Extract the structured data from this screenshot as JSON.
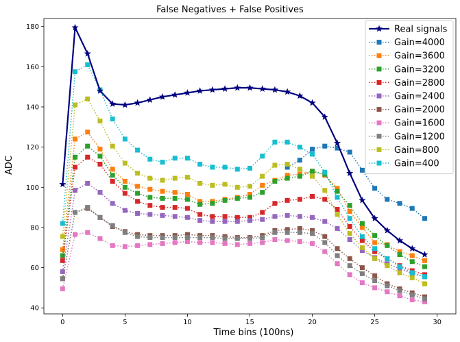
{
  "chart_data": {
    "type": "line",
    "title": "False Negatives + False Positives",
    "xlabel": "Time bins (100ns)",
    "ylabel": "ADC",
    "xlim": [
      -1.5,
      31.5
    ],
    "ylim": [
      37,
      184
    ],
    "xticks": [
      0,
      5,
      10,
      15,
      20,
      25,
      30
    ],
    "yticks": [
      40,
      60,
      80,
      100,
      120,
      140,
      160,
      180
    ],
    "grid": false,
    "legend_position": "top-right",
    "x": [
      0,
      1,
      2,
      3,
      4,
      5,
      6,
      7,
      8,
      9,
      10,
      11,
      12,
      13,
      14,
      15,
      16,
      17,
      18,
      19,
      20,
      21,
      22,
      23,
      24,
      25,
      26,
      27,
      28,
      29
    ],
    "series": [
      {
        "name": "Real signals",
        "color": "#00007f",
        "marker": "star",
        "style": "solid",
        "values": [
          101.5,
          179.5,
          166.5,
          148,
          141.5,
          141,
          142,
          143.5,
          145,
          146,
          147,
          148,
          148.5,
          149,
          149.5,
          149.5,
          149,
          148.5,
          147.5,
          145.5,
          142,
          135,
          122,
          107,
          93.5,
          84.5,
          78.5,
          73.5,
          69.5,
          66.5
        ]
      },
      {
        "name": "Gain=4000",
        "color": "#1f77b4",
        "marker": "square",
        "style": "dotted",
        "values": [
          null,
          null,
          null,
          null,
          null,
          null,
          null,
          null,
          null,
          null,
          null,
          null,
          null,
          null,
          null,
          null,
          null,
          null,
          110,
          113.5,
          119,
          120.5,
          119.5,
          117.5,
          108.5,
          99.5,
          94,
          92,
          89.5,
          84.5
        ]
      },
      {
        "name": "Gain=3600",
        "color": "#ff7f0e",
        "marker": "square",
        "style": "dotted",
        "values": [
          69,
          124,
          127.5,
          119,
          109,
          103,
          100.5,
          99,
          98,
          97.5,
          96.5,
          93,
          93,
          94,
          95,
          96.5,
          101,
          103.5,
          106,
          106.5,
          108,
          106,
          99.5,
          88,
          80,
          72.5,
          71.5,
          68,
          66,
          63.5
        ]
      },
      {
        "name": "Gain=3200",
        "color": "#2ca02c",
        "marker": "square",
        "style": "dotted",
        "values": [
          66,
          115,
          120.5,
          115.5,
          106,
          100,
          97,
          95,
          94.5,
          94.5,
          94,
          91.5,
          92,
          93.5,
          94.5,
          95,
          97.5,
          103,
          104.5,
          105.5,
          108,
          106.5,
          98,
          91,
          82,
          76,
          71,
          66.5,
          63,
          60.5
        ]
      },
      {
        "name": "Gain=2800",
        "color": "#d62728",
        "marker": "square",
        "style": "dotted",
        "values": [
          63.5,
          110,
          115,
          111.5,
          103,
          97,
          93,
          91,
          90,
          90,
          89.5,
          86.5,
          85.5,
          85.5,
          85,
          85,
          87.5,
          92,
          93.5,
          94,
          95.5,
          94,
          89,
          80.5,
          73.5,
          68,
          64.5,
          61,
          58.5,
          56.5
        ]
      },
      {
        "name": "Gain=2400",
        "color": "#9467bd",
        "marker": "square",
        "style": "dotted",
        "values": [
          58,
          98.5,
          102,
          97.5,
          92,
          88.5,
          87,
          86.5,
          86,
          85.5,
          85,
          83.5,
          83,
          83,
          83,
          83.5,
          84,
          85.5,
          86,
          85.5,
          85,
          83,
          79.5,
          74,
          68.5,
          65,
          62,
          59.5,
          57,
          55.5
        ]
      },
      {
        "name": "Gain=2000",
        "color": "#8c564b",
        "marker": "square",
        "style": "dotted",
        "values": [
          54.5,
          87.5,
          89.5,
          85,
          80.5,
          78,
          76.5,
          76,
          76,
          76,
          76.5,
          76,
          76,
          75.5,
          75,
          75,
          76,
          78.5,
          79,
          79.5,
          78.5,
          75.5,
          69.5,
          64.5,
          60,
          56,
          52,
          49.5,
          47.5,
          45.5
        ]
      },
      {
        "name": "Gain=1600",
        "color": "#e377c2",
        "marker": "square",
        "style": "dotted",
        "values": [
          49.5,
          76.5,
          77.5,
          74.5,
          71,
          70.5,
          71,
          71.5,
          72,
          72.5,
          73,
          72.5,
          72.5,
          72,
          71.5,
          72,
          72.5,
          74,
          73.5,
          73,
          72,
          68,
          62,
          56.5,
          52.5,
          50,
          48,
          46,
          44,
          43
        ]
      },
      {
        "name": "Gain=1200",
        "color": "#7f7f7f",
        "marker": "square",
        "style": "dotted",
        "values": [
          54.5,
          87.5,
          90,
          85,
          81,
          77.5,
          75.5,
          75,
          75,
          75,
          75,
          75,
          75,
          74.5,
          74.5,
          74.5,
          75,
          77.5,
          77.5,
          77.5,
          77,
          72.5,
          66,
          61,
          57,
          53.5,
          51,
          48.5,
          46.5,
          44.5
        ]
      },
      {
        "name": "Gain=800",
        "color": "#bcbd22",
        "marker": "square",
        "style": "dotted",
        "values": [
          75.5,
          141,
          144,
          133,
          120.5,
          112,
          107,
          104.5,
          103.5,
          104.5,
          105,
          102,
          101,
          101.5,
          100,
          100.5,
          105.5,
          111,
          111.5,
          109,
          105.5,
          98.5,
          86.5,
          77,
          70,
          64.5,
          61,
          57.5,
          55,
          52
        ]
      },
      {
        "name": "Gain=400",
        "color": "#17becf",
        "marker": "square",
        "style": "dotted",
        "values": [
          82,
          157.5,
          161,
          148.5,
          134,
          124,
          118.5,
          114,
          112.5,
          114.5,
          114.5,
          111.5,
          110,
          110,
          109,
          109.5,
          115.5,
          122.5,
          122.5,
          120,
          116.5,
          107.5,
          95,
          84.5,
          75.5,
          69.5,
          64.5,
          60.5,
          57.5,
          55.5
        ]
      }
    ]
  }
}
